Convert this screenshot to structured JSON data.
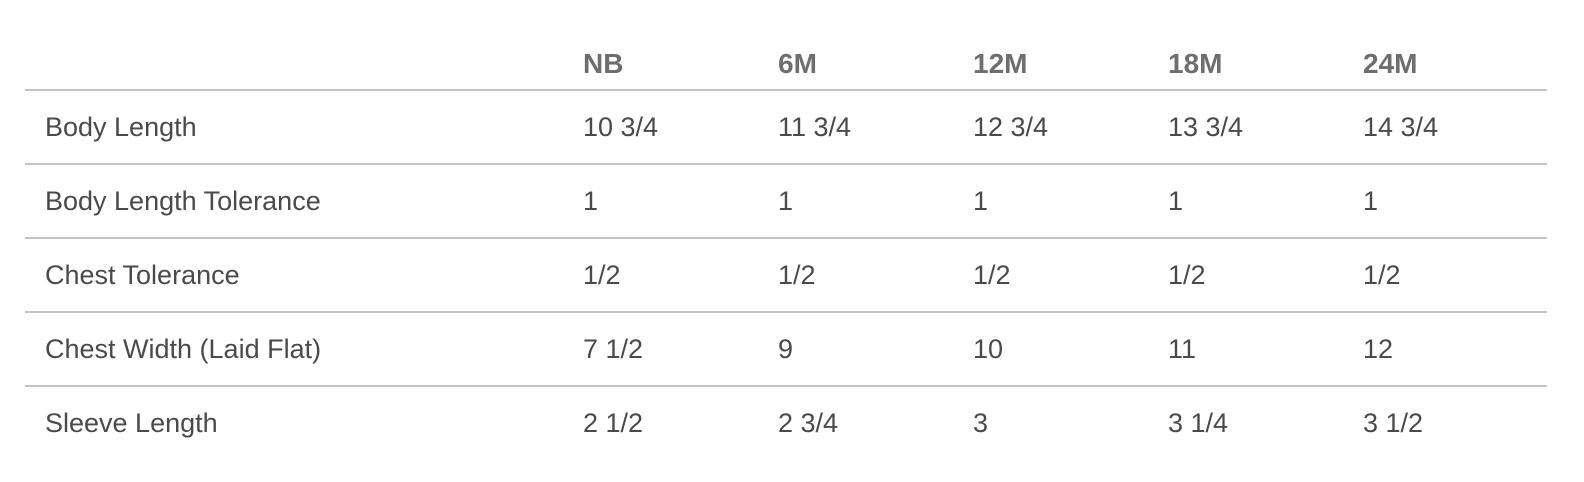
{
  "colors": {
    "background": "#ffffff",
    "row_rule": "#c3c3c3",
    "header_text": "#6e6e6e",
    "body_text": "#4a4a4a"
  },
  "chart_data": {
    "type": "table",
    "title": "",
    "columns": [
      "",
      "NB",
      "6M",
      "12M",
      "18M",
      "24M"
    ],
    "rows": [
      {
        "label": "Body Length",
        "values": [
          "10 3/4",
          "11 3/4",
          "12 3/4",
          "13 3/4",
          "14 3/4"
        ]
      },
      {
        "label": "Body Length Tolerance",
        "values": [
          "1",
          "1",
          "1",
          "1",
          "1"
        ]
      },
      {
        "label": "Chest Tolerance",
        "values": [
          "1/2",
          "1/2",
          "1/2",
          "1/2",
          "1/2"
        ]
      },
      {
        "label": "Chest Width (Laid Flat)",
        "values": [
          "7 1/2",
          "9",
          "10",
          "11",
          "12"
        ]
      },
      {
        "label": "Sleeve Length",
        "values": [
          "2 1/2",
          "2 3/4",
          "3",
          "3 1/4",
          "3 1/2"
        ]
      }
    ],
    "layout": {
      "grid": "horizontal-rules-only",
      "header_position": "top",
      "last_row_bottom_rule": false
    }
  }
}
